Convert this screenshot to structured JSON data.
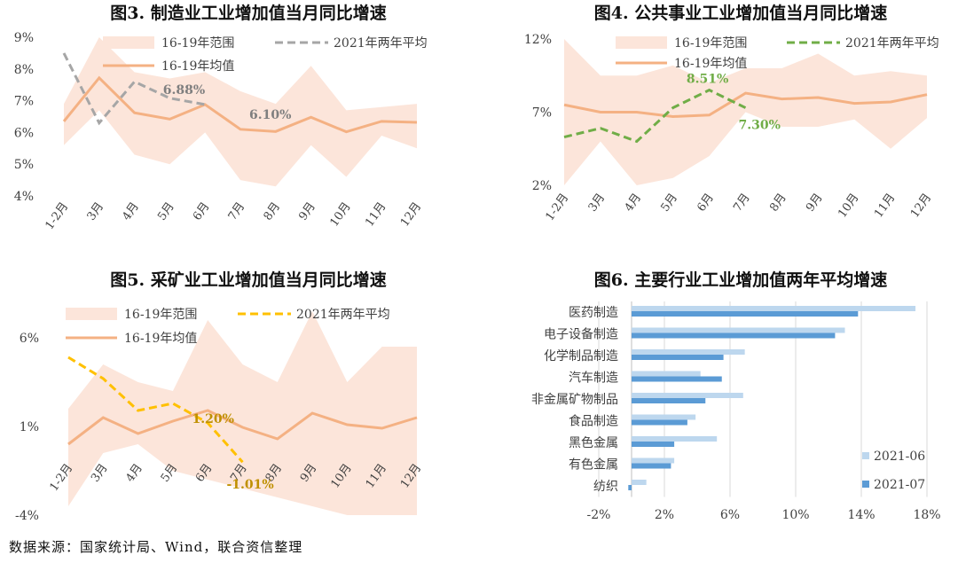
{
  "chart_data": [
    {
      "id": "fig3",
      "type": "line",
      "title": "图3.  制造业工业增加值当月同比增速",
      "categories": [
        "1-2月",
        "3月",
        "4月",
        "5月",
        "6月",
        "7月",
        "8月",
        "9月",
        "10月",
        "11月",
        "12月"
      ],
      "yticks": [
        "9%",
        "8%",
        "7%",
        "6%",
        "5%",
        "4%"
      ],
      "ylim": [
        4,
        9
      ],
      "range_band": {
        "name": "16-19年范围",
        "high": [
          6.9,
          9.0,
          7.9,
          7.7,
          7.9,
          7.3,
          6.9,
          8.1,
          6.7,
          6.8,
          6.9
        ],
        "low": [
          5.6,
          6.7,
          5.3,
          5.0,
          6.0,
          4.5,
          4.3,
          5.6,
          4.6,
          5.9,
          5.5
        ]
      },
      "series": [
        {
          "name": "16-19年均值",
          "values": [
            6.35,
            7.72,
            6.62,
            6.42,
            6.88,
            6.1,
            6.03,
            6.48,
            6.02,
            6.35,
            6.32
          ]
        },
        {
          "name": "2021年两年平均",
          "values": [
            8.5,
            6.3,
            7.6,
            7.08,
            6.88,
            null,
            null,
            null,
            null,
            null,
            null
          ]
        }
      ],
      "annotations": [
        {
          "text": "6.88%",
          "x": 4,
          "y": 6.88
        },
        {
          "text": "6.10%",
          "x": 5,
          "y": 6.1
        }
      ],
      "colors": {
        "band": "#fce5da",
        "mean": "#f4b183",
        "y2021": "#a6a6a6",
        "label": "#7f7f7f"
      }
    },
    {
      "id": "fig4",
      "type": "line",
      "title": "图4.  公共事业工业增加值当月同比增速",
      "categories": [
        "1-2月",
        "3月",
        "4月",
        "5月",
        "6月",
        "7月",
        "8月",
        "9月",
        "10月",
        "11月",
        "12月"
      ],
      "yticks": [
        "12%",
        "7%",
        "2%"
      ],
      "ylim": [
        2,
        12
      ],
      "range_band": {
        "name": "16-19年范围",
        "high": [
          12.0,
          9.5,
          9.5,
          10.2,
          9.0,
          10.0,
          10.0,
          11.0,
          9.5,
          9.8,
          9.5
        ],
        "low": [
          2.0,
          5.0,
          2.0,
          2.5,
          4.0,
          7.0,
          6.0,
          6.0,
          6.5,
          4.5,
          6.6
        ]
      },
      "series": [
        {
          "name": "16-19年均值",
          "values": [
            7.5,
            7.0,
            7.0,
            6.7,
            6.8,
            8.3,
            7.9,
            8.0,
            7.6,
            7.7,
            8.2
          ]
        },
        {
          "name": "2021年两年平均",
          "values": [
            5.3,
            5.9,
            5.0,
            7.3,
            8.51,
            7.3,
            null,
            null,
            null,
            null,
            null
          ]
        }
      ],
      "annotations": [
        {
          "text": "8.51%",
          "x": 4,
          "y": 8.51
        },
        {
          "text": "7.30%",
          "x": 5,
          "y": 7.3
        }
      ],
      "colors": {
        "band": "#fce5da",
        "mean": "#f4b183",
        "y2021": "#70ad47",
        "label": "#70ad47"
      }
    },
    {
      "id": "fig5",
      "type": "line",
      "title": "图5.  采矿业工业增加值当月同比增速",
      "categories": [
        "1-2月",
        "3月",
        "4月",
        "5月",
        "6月",
        "7月",
        "8月",
        "9月",
        "10月",
        "11月",
        "12月"
      ],
      "yticks": [
        "6%",
        "1%",
        "-4%"
      ],
      "ylim": [
        -4,
        6
      ],
      "range_band": {
        "name": "16-19年范围",
        "high": [
          2.0,
          4.5,
          3.5,
          3.0,
          7.0,
          4.5,
          3.5,
          7.5,
          3.5,
          5.5,
          5.5
        ],
        "low": [
          -3.5,
          -0.5,
          0.0,
          -1.5,
          -2.0,
          -2.5,
          -3.0,
          -3.5,
          -4.0,
          -4.0,
          -4.0
        ]
      },
      "series": [
        {
          "name": "16-19年均值",
          "values": [
            0.0,
            1.5,
            0.6,
            1.3,
            1.9,
            0.95,
            0.3,
            1.75,
            1.1,
            0.9,
            1.5
          ]
        },
        {
          "name": "2021年两年平均",
          "values": [
            4.9,
            3.7,
            1.9,
            2.3,
            1.2,
            -1.01,
            null,
            null,
            null,
            null,
            null
          ]
        }
      ],
      "annotations": [
        {
          "text": "1.20%",
          "x": 4,
          "y": 1.2
        },
        {
          "text": "-1.01%",
          "x": 5,
          "y": -1.01
        }
      ],
      "colors": {
        "band": "#fce5da",
        "mean": "#f4b183",
        "y2021": "#ffc000",
        "label": "#bf9000"
      }
    },
    {
      "id": "fig6",
      "type": "bar",
      "orientation": "horizontal",
      "title": "图6.  主要行业工业增加值两年平均增速",
      "categories": [
        "医药制造",
        "电子设备制造",
        "化学制品制造",
        "汽车制造",
        "非金属矿物制品",
        "食品制造",
        "黑色金属",
        "有色金属",
        "纺织"
      ],
      "xticks": [
        "-2%",
        "2%",
        "6%",
        "10%",
        "14%",
        "18%"
      ],
      "xlim": [
        -2,
        18
      ],
      "series": [
        {
          "name": "2021-06",
          "values": [
            17.3,
            13.0,
            6.9,
            4.2,
            6.8,
            3.9,
            5.2,
            2.6,
            0.9
          ]
        },
        {
          "name": "2021-07",
          "values": [
            13.8,
            12.4,
            5.6,
            5.5,
            4.5,
            3.4,
            2.6,
            2.4,
            -0.2
          ]
        }
      ],
      "colors": {
        "s1": "#bdd7ee",
        "s2": "#5b9bd5"
      }
    }
  ],
  "source_note": "数据来源：国家统计局、Wind，联合资信整理"
}
